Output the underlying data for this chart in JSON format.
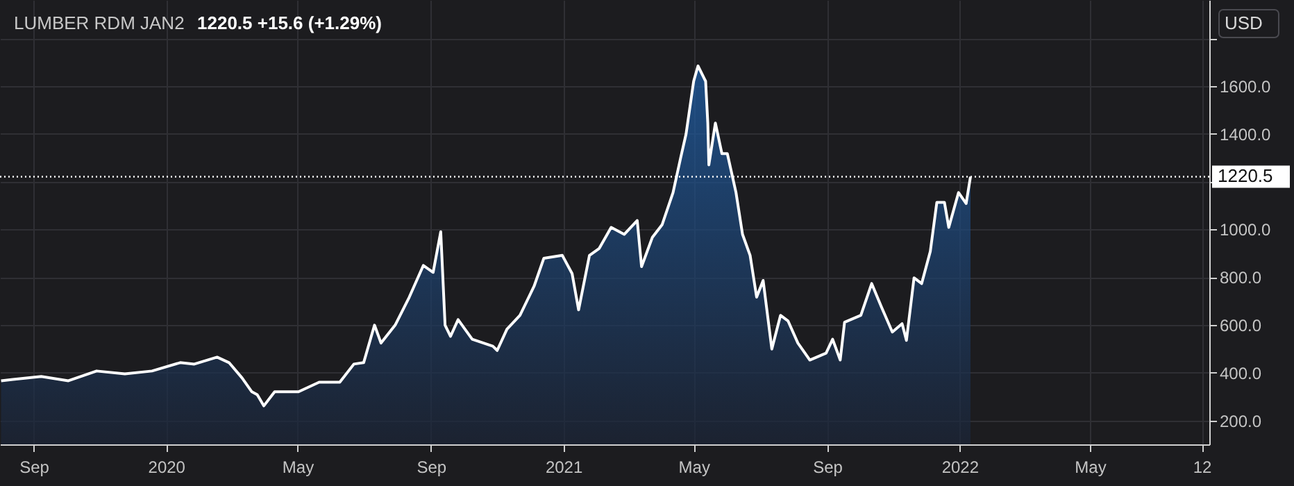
{
  "chart_data": {
    "type": "area",
    "title": "LUMBER RDM JAN2",
    "annotations": [
      "1220.5 +15.6 (+1.29%)",
      "USD"
    ],
    "x": [
      "2019-08-02",
      "2019-08-13",
      "2019-09-08",
      "2019-10-03",
      "2019-10-29",
      "2019-11-24",
      "2019-12-19",
      "2020-01-14",
      "2020-01-27",
      "2020-02-17",
      "2020-02-28",
      "2020-03-11",
      "2020-03-20",
      "2020-03-25",
      "2020-03-31",
      "2020-04-10",
      "2020-05-02",
      "2020-05-21",
      "2020-06-09",
      "2020-06-22",
      "2020-07-01",
      "2020-07-11",
      "2020-07-17",
      "2020-07-30",
      "2020-08-12",
      "2020-08-25",
      "2020-09-03",
      "2020-09-10",
      "2020-09-14",
      "2020-09-19",
      "2020-09-26",
      "2020-10-09",
      "2020-10-28",
      "2020-11-01",
      "2020-11-10",
      "2020-11-22",
      "2020-12-05",
      "2020-12-14",
      "2020-12-31",
      "2021-01-09",
      "2021-01-15",
      "2021-01-25",
      "2021-02-03",
      "2021-02-14",
      "2021-02-26",
      "2021-03-10",
      "2021-03-14",
      "2021-03-24",
      "2021-04-02",
      "2021-04-12",
      "2021-04-19",
      "2021-04-24",
      "2021-05-01",
      "2021-05-05",
      "2021-05-12",
      "2021-05-14",
      "2021-05-15",
      "2021-05-21",
      "2021-05-27",
      "2021-06-01",
      "2021-06-09",
      "2021-06-15",
      "2021-06-22",
      "2021-06-28",
      "2021-07-04",
      "2021-07-12",
      "2021-07-20",
      "2021-07-27",
      "2021-08-05",
      "2021-08-16",
      "2021-08-31",
      "2021-09-06",
      "2021-09-13",
      "2021-09-17",
      "2021-10-02",
      "2021-10-12",
      "2021-10-21",
      "2021-10-31",
      "2021-11-09",
      "2021-11-13",
      "2021-11-20",
      "2021-11-27",
      "2021-12-05",
      "2021-12-11",
      "2021-12-18",
      "2021-12-22",
      "2021-12-31",
      "2022-01-07",
      "2022-01-11"
    ],
    "series": [
      {
        "color": "#ffffff",
        "values": [
          366,
          372,
          384,
          366,
          407,
          395,
          407,
          442,
          436,
          465,
          442,
          378,
          320,
          308,
          261,
          320,
          320,
          360,
          360,
          436,
          442,
          599,
          524,
          599,
          716,
          849,
          820,
          990,
          599,
          552,
          622,
          540,
          511,
          493,
          582,
          640,
          762,
          879,
          891,
          815,
          663,
          891,
          920,
          1008,
          979,
          1037,
          844,
          967,
          1020,
          1154,
          1299,
          1399,
          1620,
          1684,
          1620,
          1445,
          1270,
          1445,
          1317,
          1317,
          1154,
          979,
          891,
          716,
          786,
          499,
          640,
          616,
          524,
          453,
          482,
          540,
          453,
          611,
          640,
          773,
          675,
          570,
          605,
          535,
          797,
          773,
          908,
          1113,
          1113,
          1008,
          1154,
          1108,
          1220.5
        ]
      }
    ],
    "xlim": [
      "2019-08-01",
      "2022-08-19"
    ],
    "xticks": [
      {
        "value": "2019-09-01",
        "label": "Sep"
      },
      {
        "value": "2020-01-01",
        "label": "2020"
      },
      {
        "value": "2020-05-01",
        "label": "May"
      },
      {
        "value": "2020-09-01",
        "label": "Sep"
      },
      {
        "value": "2021-01-01",
        "label": "2021"
      },
      {
        "value": "2021-05-01",
        "label": "May"
      },
      {
        "value": "2021-09-01",
        "label": "Sep"
      },
      {
        "value": "2022-01-01",
        "label": "2022"
      },
      {
        "value": "2022-05-01",
        "label": "May"
      },
      {
        "value": "2022-08-12",
        "label": "12"
      }
    ],
    "ylim": [
      100,
      1960
    ],
    "yticks": [
      {
        "value": 200,
        "label": "200.0"
      },
      {
        "value": 400,
        "label": "400.0"
      },
      {
        "value": 600,
        "label": "600.0"
      },
      {
        "value": 800,
        "label": "800.0"
      },
      {
        "value": 1000,
        "label": "1000.0"
      },
      {
        "value": 1200,
        "label": null
      },
      {
        "value": 1400,
        "label": "1400.0"
      },
      {
        "value": 1600,
        "label": "1600.0"
      },
      {
        "value": 1800,
        "label": null
      }
    ],
    "ref_lines": [
      {
        "axis": "y",
        "value": 1220.5,
        "label": "1220.5",
        "color": "#ffffff",
        "line_style": "dotted"
      }
    ],
    "grid": true
  }
}
